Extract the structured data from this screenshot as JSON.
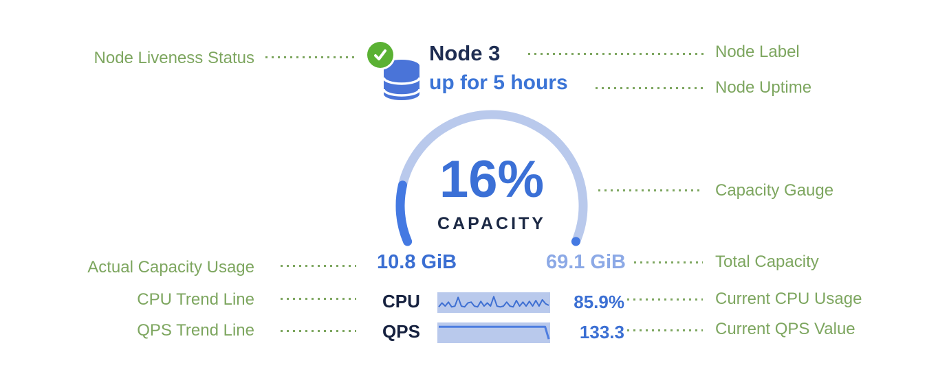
{
  "annotations": {
    "left": [
      {
        "label": "Node Liveness Status"
      },
      {
        "label": "Actual Capacity Usage"
      },
      {
        "label": "CPU Trend Line"
      },
      {
        "label": "QPS Trend Line"
      }
    ],
    "right": [
      {
        "label": "Node Label"
      },
      {
        "label": "Node Uptime"
      },
      {
        "label": "Capacity Gauge"
      },
      {
        "label": "Total Capacity"
      },
      {
        "label": "Current CPU Usage"
      },
      {
        "label": "Current QPS Value"
      }
    ]
  },
  "node": {
    "label": "Node 3",
    "uptime": "up for 5 hours",
    "liveness": "live"
  },
  "chart_data": {
    "gauge": {
      "type": "gauge",
      "percent": 16,
      "percent_label": "16%",
      "caption": "CAPACITY",
      "used": "10.8 GiB",
      "total": "69.1 GiB",
      "sweep_degrees": 225
    },
    "cpu": {
      "type": "line",
      "label": "CPU",
      "value": "85.9%",
      "sparkline": [
        0.25,
        0.5,
        0.3,
        0.55,
        0.25,
        0.3,
        0.85,
        0.3,
        0.25,
        0.5,
        0.55,
        0.3,
        0.25,
        0.6,
        0.3,
        0.5,
        0.3,
        0.9,
        0.3,
        0.25,
        0.3,
        0.55,
        0.3,
        0.25,
        0.65,
        0.3,
        0.55,
        0.3,
        0.6,
        0.3,
        0.65,
        0.3,
        0.7,
        0.45,
        0.35
      ]
    },
    "qps": {
      "type": "area",
      "label": "QPS",
      "value": "133.3",
      "sparkline": [
        0.9,
        0.9,
        0.9,
        0.9,
        0.9,
        0.9,
        0.9,
        0.9,
        0.9,
        0.9,
        0.9,
        0.9,
        0.9,
        0.9,
        0.9,
        0.9,
        0.9,
        0.9,
        0.9,
        0.9,
        0.9,
        0.9,
        0.9,
        0.9,
        0.9,
        0.9,
        0.9,
        0.9,
        0.9,
        0.9,
        0.12
      ]
    }
  },
  "colors": {
    "annotation_green": "#7da65f",
    "liveness_green": "#5ab133",
    "primary_blue": "#3b70d6",
    "navy": "#1e2d52",
    "gauge_track": "#b9c9ec",
    "gauge_fill": "#4479e2",
    "spark_bg": "#b9c9ec",
    "spark_line": "#3e6fd2",
    "total_light_blue": "#8ca9e6"
  }
}
